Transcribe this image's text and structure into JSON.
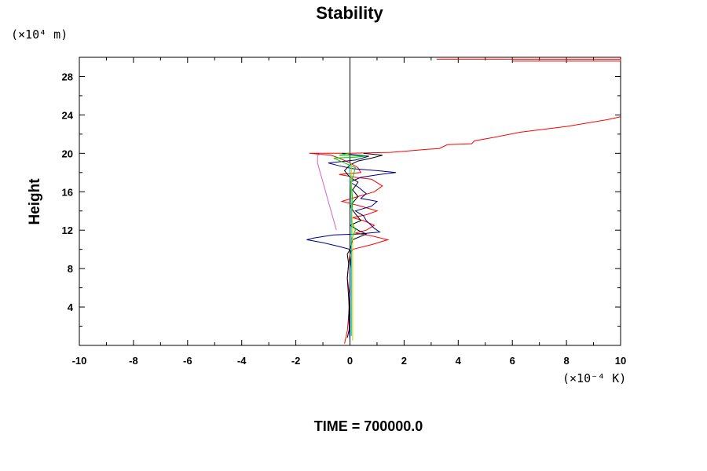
{
  "chart_data": {
    "type": "line",
    "title": "Stability",
    "ylabel": "Height",
    "y_unit": "(×10⁴ m)",
    "x_unit": "(×10⁻⁴ K)",
    "footer": "TIME = 700000.0",
    "xlim": [
      -10,
      10
    ],
    "ylim": [
      0,
      30
    ],
    "x_ticks": [
      -10,
      -8,
      -6,
      -4,
      -2,
      0,
      2,
      4,
      6,
      8,
      10
    ],
    "x_tick_labels": [
      "-10",
      "-8",
      "-6",
      "-4",
      "-2",
      "0",
      "2",
      "4",
      "6",
      "8",
      "10"
    ],
    "y_ticks": [
      4,
      8,
      12,
      16,
      20,
      24,
      28
    ],
    "y_tick_labels": [
      "4",
      "8",
      "12",
      "16",
      "20",
      "24",
      "28"
    ],
    "zero_line_x": 0,
    "series": [
      {
        "color": "#ff0000",
        "points": [
          [
            -0.2,
            0.2
          ],
          [
            -0.1,
            1.5
          ],
          [
            -0.05,
            3
          ],
          [
            0,
            5
          ],
          [
            -0.1,
            7
          ],
          [
            -0.05,
            8.5
          ],
          [
            0,
            9.5
          ],
          [
            0.1,
            10
          ],
          [
            0.8,
            10.5
          ],
          [
            1.4,
            11
          ],
          [
            0.8,
            11.4
          ],
          [
            0.2,
            11.7
          ],
          [
            0.6,
            12
          ],
          [
            0.9,
            12.5
          ],
          [
            0.5,
            13
          ],
          [
            0.1,
            13.3
          ],
          [
            0.6,
            13.6
          ],
          [
            1.0,
            14
          ],
          [
            0.4,
            14.5
          ],
          [
            -0.3,
            15
          ],
          [
            0.3,
            15.5
          ],
          [
            0.9,
            16
          ],
          [
            1.2,
            16.6
          ],
          [
            0.8,
            17.3
          ],
          [
            0.2,
            17.5
          ],
          [
            -0.4,
            17.8
          ],
          [
            0.4,
            18
          ],
          [
            0.3,
            18.5
          ],
          [
            0.0,
            19
          ],
          [
            -0.4,
            19.5
          ],
          [
            -0.7,
            19.8
          ],
          [
            -1.5,
            20.0
          ],
          [
            0,
            20.0
          ],
          [
            1.5,
            20.1
          ],
          [
            2.8,
            20.4
          ],
          [
            3.3,
            20.5
          ],
          [
            3.6,
            20.9
          ],
          [
            4.5,
            21.0
          ],
          [
            4.6,
            21.3
          ],
          [
            5.2,
            21.6
          ],
          [
            6.3,
            22.2
          ],
          [
            8.0,
            22.8
          ],
          [
            9.5,
            23.5
          ],
          [
            10,
            23.8
          ]
        ]
      },
      {
        "color": "#ff0000",
        "points": [
          [
            3.2,
            29.8
          ],
          [
            6,
            29.8
          ],
          [
            10,
            29.8
          ],
          [
            10,
            29.6
          ],
          [
            6,
            29.6
          ]
        ]
      },
      {
        "color": "#000080",
        "points": [
          [
            0,
            0.5
          ],
          [
            -0.05,
            3
          ],
          [
            0,
            6
          ],
          [
            0,
            8
          ],
          [
            0.05,
            9.5
          ],
          [
            0,
            10
          ],
          [
            -0.4,
            10.3
          ],
          [
            -1.0,
            10.7
          ],
          [
            -1.6,
            11.0
          ],
          [
            -1.3,
            11.2
          ],
          [
            -0.6,
            11.5
          ],
          [
            0.3,
            11.6
          ],
          [
            1.1,
            11.8
          ],
          [
            0.9,
            12.2
          ],
          [
            0.6,
            13
          ],
          [
            0.5,
            13.5
          ],
          [
            0.2,
            14
          ],
          [
            0.8,
            14.5
          ],
          [
            1.0,
            15
          ],
          [
            0.4,
            15.3
          ],
          [
            0.6,
            15.8
          ],
          [
            0.3,
            16.5
          ],
          [
            0.0,
            17
          ],
          [
            0.4,
            17.5
          ],
          [
            1.1,
            17.8
          ],
          [
            1.7,
            18
          ],
          [
            1.0,
            18.2
          ],
          [
            0.1,
            18.4
          ],
          [
            -0.4,
            18.7
          ],
          [
            -0.8,
            19
          ],
          [
            0.2,
            19.3
          ],
          [
            0.7,
            19.7
          ],
          [
            -0.3,
            20
          ]
        ]
      },
      {
        "color": "#000000",
        "points": [
          [
            -0.1,
            0.8
          ],
          [
            0,
            2
          ],
          [
            -0.05,
            5
          ],
          [
            -0.1,
            7
          ],
          [
            -0.05,
            8.5
          ],
          [
            -0.1,
            9.5
          ],
          [
            0,
            10
          ],
          [
            0.1,
            11
          ],
          [
            0.6,
            11.6
          ],
          [
            0.3,
            12
          ],
          [
            0,
            12.5
          ],
          [
            0.4,
            13
          ],
          [
            0.2,
            13.7
          ],
          [
            0.0,
            14.5
          ],
          [
            0.3,
            15.5
          ],
          [
            0.1,
            16.2
          ],
          [
            0.3,
            17
          ],
          [
            0.0,
            17.5
          ],
          [
            -0.2,
            18.2
          ],
          [
            0.0,
            18.8
          ],
          [
            0.3,
            19.2
          ],
          [
            0.8,
            19.5
          ],
          [
            1.2,
            19.8
          ],
          [
            0.5,
            20.0
          ]
        ]
      },
      {
        "color": "#cc66cc",
        "points": [
          [
            -0.5,
            12
          ],
          [
            -0.6,
            13
          ],
          [
            -0.7,
            14
          ],
          [
            -0.8,
            15
          ],
          [
            -0.9,
            16
          ],
          [
            -1.0,
            17
          ],
          [
            -1.1,
            18
          ],
          [
            -1.2,
            19
          ],
          [
            -1.2,
            19.8
          ],
          [
            -1.0,
            20.0
          ]
        ]
      },
      {
        "color": "#00cc00",
        "points": [
          [
            0.05,
            1
          ],
          [
            0.05,
            5
          ],
          [
            0.05,
            9
          ],
          [
            0.05,
            11
          ],
          [
            0.2,
            12
          ],
          [
            0.05,
            13
          ],
          [
            0.1,
            15
          ],
          [
            0.05,
            17
          ],
          [
            0.2,
            18.5
          ],
          [
            -0.6,
            19.5
          ],
          [
            0.2,
            19.6
          ],
          [
            0.6,
            19.7
          ],
          [
            -0.4,
            19.8
          ],
          [
            0,
            20.0
          ]
        ]
      },
      {
        "color": "#cccc00",
        "points": [
          [
            0.1,
            0.5
          ],
          [
            0.1,
            4
          ],
          [
            0.1,
            9
          ],
          [
            0.1,
            12
          ],
          [
            0.05,
            15
          ],
          [
            0.05,
            18
          ],
          [
            0.05,
            19
          ]
        ]
      },
      {
        "color": "#00cccc",
        "points": [
          [
            0.05,
            1
          ],
          [
            0.05,
            8
          ],
          [
            0.05,
            14
          ],
          [
            0.0,
            18
          ],
          [
            0.0,
            19
          ]
        ]
      }
    ]
  }
}
